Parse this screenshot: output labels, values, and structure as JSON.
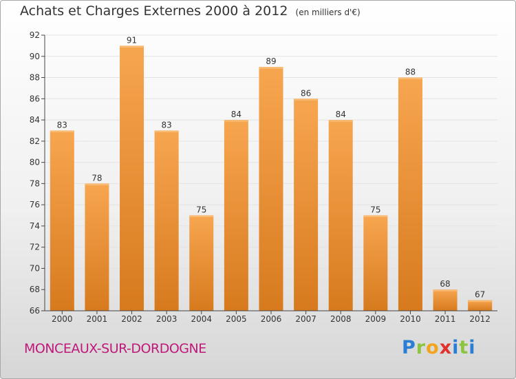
{
  "title": "Achats et Charges Externes 2000 à 2012",
  "unit": "(en milliers d'€)",
  "town": "MONCEAUX-SUR-DORDOGNE",
  "brand": "Proxiti",
  "colors": {
    "bar_top": "#f7a650",
    "bar_bottom": "#d77a1e",
    "town": "#c0187a",
    "grid": "#e3e3e3",
    "axis": "#444444"
  },
  "chart_data": {
    "type": "bar",
    "categories": [
      "2000",
      "2001",
      "2002",
      "2003",
      "2004",
      "2005",
      "2006",
      "2007",
      "2008",
      "2009",
      "2010",
      "2011",
      "2012"
    ],
    "values": [
      83,
      78,
      91,
      83,
      75,
      84,
      89,
      86,
      84,
      75,
      88,
      68,
      67
    ],
    "title": "Achats et Charges Externes 2000 à 2012",
    "xlabel": "",
    "ylabel": "",
    "ylim": [
      66,
      92
    ],
    "yticks": [
      66,
      68,
      70,
      72,
      74,
      76,
      78,
      80,
      82,
      84,
      86,
      88,
      90,
      92
    ],
    "grid": true,
    "data_labels": true
  }
}
